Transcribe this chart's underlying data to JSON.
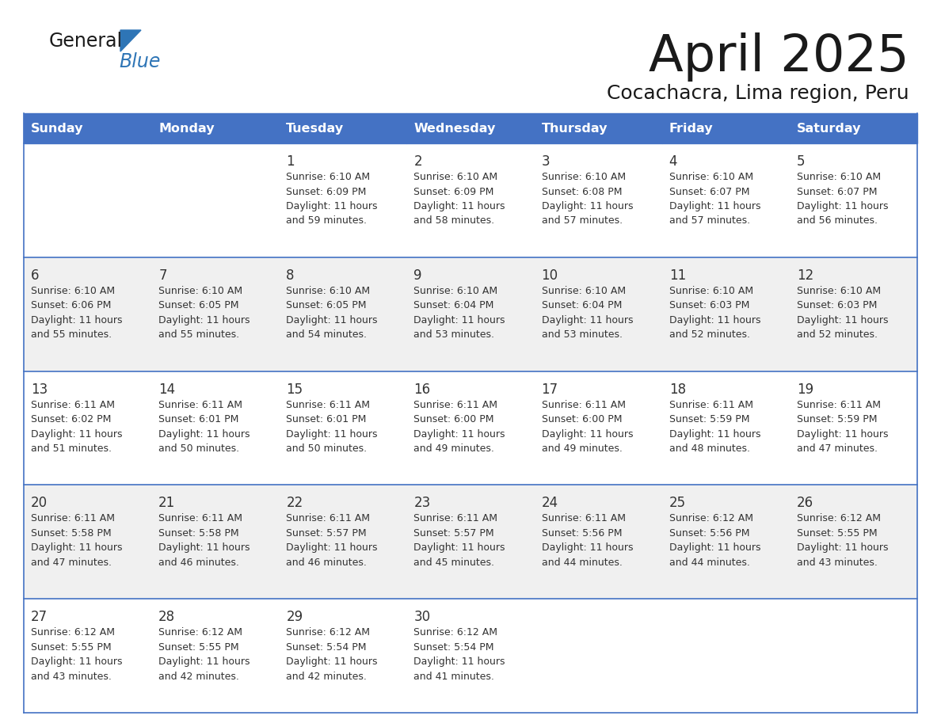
{
  "title": "April 2025",
  "subtitle": "Cocachacra, Lima region, Peru",
  "days_of_week": [
    "Sunday",
    "Monday",
    "Tuesday",
    "Wednesday",
    "Thursday",
    "Friday",
    "Saturday"
  ],
  "header_bg": "#4472C4",
  "header_text": "#FFFFFF",
  "row_bg_light": "#FFFFFF",
  "row_bg_alt": "#F0F0F0",
  "cell_border": "#4472C4",
  "day_number_color": "#333333",
  "text_color": "#333333",
  "title_color": "#1a1a1a",
  "subtitle_color": "#1a1a1a",
  "logo_general_color": "#1a1a1a",
  "logo_blue_color": "#2E75B6",
  "calendar_data": [
    {
      "day": 1,
      "col": 2,
      "row": 0,
      "sunrise": "6:10 AM",
      "sunset": "6:09 PM",
      "daylight_min": "59"
    },
    {
      "day": 2,
      "col": 3,
      "row": 0,
      "sunrise": "6:10 AM",
      "sunset": "6:09 PM",
      "daylight_min": "58"
    },
    {
      "day": 3,
      "col": 4,
      "row": 0,
      "sunrise": "6:10 AM",
      "sunset": "6:08 PM",
      "daylight_min": "57"
    },
    {
      "day": 4,
      "col": 5,
      "row": 0,
      "sunrise": "6:10 AM",
      "sunset": "6:07 PM",
      "daylight_min": "57"
    },
    {
      "day": 5,
      "col": 6,
      "row": 0,
      "sunrise": "6:10 AM",
      "sunset": "6:07 PM",
      "daylight_min": "56"
    },
    {
      "day": 6,
      "col": 0,
      "row": 1,
      "sunrise": "6:10 AM",
      "sunset": "6:06 PM",
      "daylight_min": "55"
    },
    {
      "day": 7,
      "col": 1,
      "row": 1,
      "sunrise": "6:10 AM",
      "sunset": "6:05 PM",
      "daylight_min": "55"
    },
    {
      "day": 8,
      "col": 2,
      "row": 1,
      "sunrise": "6:10 AM",
      "sunset": "6:05 PM",
      "daylight_min": "54"
    },
    {
      "day": 9,
      "col": 3,
      "row": 1,
      "sunrise": "6:10 AM",
      "sunset": "6:04 PM",
      "daylight_min": "53"
    },
    {
      "day": 10,
      "col": 4,
      "row": 1,
      "sunrise": "6:10 AM",
      "sunset": "6:04 PM",
      "daylight_min": "53"
    },
    {
      "day": 11,
      "col": 5,
      "row": 1,
      "sunrise": "6:10 AM",
      "sunset": "6:03 PM",
      "daylight_min": "52"
    },
    {
      "day": 12,
      "col": 6,
      "row": 1,
      "sunrise": "6:10 AM",
      "sunset": "6:03 PM",
      "daylight_min": "52"
    },
    {
      "day": 13,
      "col": 0,
      "row": 2,
      "sunrise": "6:11 AM",
      "sunset": "6:02 PM",
      "daylight_min": "51"
    },
    {
      "day": 14,
      "col": 1,
      "row": 2,
      "sunrise": "6:11 AM",
      "sunset": "6:01 PM",
      "daylight_min": "50"
    },
    {
      "day": 15,
      "col": 2,
      "row": 2,
      "sunrise": "6:11 AM",
      "sunset": "6:01 PM",
      "daylight_min": "50"
    },
    {
      "day": 16,
      "col": 3,
      "row": 2,
      "sunrise": "6:11 AM",
      "sunset": "6:00 PM",
      "daylight_min": "49"
    },
    {
      "day": 17,
      "col": 4,
      "row": 2,
      "sunrise": "6:11 AM",
      "sunset": "6:00 PM",
      "daylight_min": "49"
    },
    {
      "day": 18,
      "col": 5,
      "row": 2,
      "sunrise": "6:11 AM",
      "sunset": "5:59 PM",
      "daylight_min": "48"
    },
    {
      "day": 19,
      "col": 6,
      "row": 2,
      "sunrise": "6:11 AM",
      "sunset": "5:59 PM",
      "daylight_min": "47"
    },
    {
      "day": 20,
      "col": 0,
      "row": 3,
      "sunrise": "6:11 AM",
      "sunset": "5:58 PM",
      "daylight_min": "47"
    },
    {
      "day": 21,
      "col": 1,
      "row": 3,
      "sunrise": "6:11 AM",
      "sunset": "5:58 PM",
      "daylight_min": "46"
    },
    {
      "day": 22,
      "col": 2,
      "row": 3,
      "sunrise": "6:11 AM",
      "sunset": "5:57 PM",
      "daylight_min": "46"
    },
    {
      "day": 23,
      "col": 3,
      "row": 3,
      "sunrise": "6:11 AM",
      "sunset": "5:57 PM",
      "daylight_min": "45"
    },
    {
      "day": 24,
      "col": 4,
      "row": 3,
      "sunrise": "6:11 AM",
      "sunset": "5:56 PM",
      "daylight_min": "44"
    },
    {
      "day": 25,
      "col": 5,
      "row": 3,
      "sunrise": "6:12 AM",
      "sunset": "5:56 PM",
      "daylight_min": "44"
    },
    {
      "day": 26,
      "col": 6,
      "row": 3,
      "sunrise": "6:12 AM",
      "sunset": "5:55 PM",
      "daylight_min": "43"
    },
    {
      "day": 27,
      "col": 0,
      "row": 4,
      "sunrise": "6:12 AM",
      "sunset": "5:55 PM",
      "daylight_min": "43"
    },
    {
      "day": 28,
      "col": 1,
      "row": 4,
      "sunrise": "6:12 AM",
      "sunset": "5:55 PM",
      "daylight_min": "42"
    },
    {
      "day": 29,
      "col": 2,
      "row": 4,
      "sunrise": "6:12 AM",
      "sunset": "5:54 PM",
      "daylight_min": "42"
    },
    {
      "day": 30,
      "col": 3,
      "row": 4,
      "sunrise": "6:12 AM",
      "sunset": "5:54 PM",
      "daylight_min": "41"
    }
  ]
}
